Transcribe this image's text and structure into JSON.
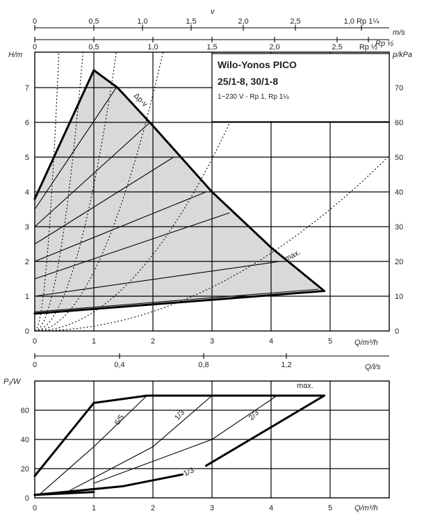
{
  "title": {
    "line1": "Wilo-Yonos PICO",
    "line2": "25/1-8, 30/1-8",
    "line3": "1~230 V - Rp 1, Rp 1¼"
  },
  "chart_data": [
    {
      "type": "line",
      "name": "pump-curve-chart",
      "x_axis": {
        "label": "Q/m³/h",
        "range": [
          0,
          6
        ],
        "ticks": [
          "0",
          "1",
          "2",
          "3",
          "4",
          "5"
        ]
      },
      "y_axis_left": {
        "label": "H/m",
        "range": [
          0,
          8
        ],
        "ticks": [
          "0",
          "1",
          "2",
          "3",
          "4",
          "5",
          "6",
          "7"
        ]
      },
      "y_axis_right": {
        "label": "p/kPa",
        "range": [
          0,
          80
        ],
        "ticks": [
          "0",
          "10",
          "20",
          "30",
          "40",
          "50",
          "60",
          "70"
        ]
      },
      "top_scale_1": {
        "label": "v",
        "unit": "m/s",
        "ticks": [
          "0",
          "0,5",
          "1,0",
          "1,5",
          "2,0",
          "2,5",
          "1,0 Rp 1¼"
        ]
      },
      "top_scale_2": {
        "unit": "Rp ½",
        "ticks": [
          "0",
          "0,5",
          "1,0",
          "1,5",
          "2,0",
          "2,5",
          "Rp ½"
        ]
      },
      "annotations": [
        "Δp-v",
        "max."
      ],
      "max_curve": {
        "x": [
          0,
          1.0,
          1.4,
          2.0,
          3.0,
          4.0,
          4.9
        ],
        "y": [
          3.8,
          7.5,
          7.0,
          5.9,
          4.0,
          2.4,
          1.15
        ]
      },
      "min_curve": {
        "x": [
          0,
          4.9
        ],
        "y": [
          0.5,
          1.15
        ]
      },
      "dp_v_lines": [
        {
          "x": [
            0,
            1.38
          ],
          "y": [
            3.5,
            7.0
          ]
        },
        {
          "x": [
            0,
            1.95
          ],
          "y": [
            3.0,
            6.0
          ]
        },
        {
          "x": [
            0,
            2.35
          ],
          "y": [
            2.5,
            5.0
          ]
        },
        {
          "x": [
            0,
            2.9
          ],
          "y": [
            2.0,
            4.0
          ]
        },
        {
          "x": [
            0,
            3.3
          ],
          "y": [
            1.5,
            3.4
          ]
        },
        {
          "x": [
            0,
            4.15
          ],
          "y": [
            1.0,
            2.0
          ]
        },
        {
          "x": [
            0,
            4.8
          ],
          "y": [
            0.55,
            1.2
          ]
        }
      ],
      "system_curves": [
        {
          "k": 48
        },
        {
          "k": 12
        },
        {
          "k": 4.2
        },
        {
          "k": 1.7
        },
        {
          "k": 0.55
        },
        {
          "k": 0.14
        }
      ]
    },
    {
      "type": "line",
      "name": "power-chart",
      "x_axis": {
        "label": "Q/m³/h",
        "range": [
          0,
          6
        ],
        "ticks": [
          "0",
          "1",
          "2",
          "3",
          "4",
          "5"
        ]
      },
      "y_axis_left": {
        "label": "P₁/W",
        "range": [
          0,
          80
        ],
        "ticks": [
          "0",
          "20",
          "40",
          "60"
        ]
      },
      "top_scale": {
        "unit": "Q/l/s",
        "ticks": [
          "0",
          "0,4",
          "0,8",
          "1,2"
        ]
      },
      "annotations": [
        "max.",
        "6/5",
        "1/3",
        "2/3",
        "1/3"
      ],
      "max_power_curve": {
        "x": [
          0,
          1.0,
          1.9,
          4.9
        ],
        "y": [
          15,
          65,
          70,
          70
        ]
      },
      "bottom_curve": {
        "x": [
          2.9,
          4.9
        ],
        "y": [
          22,
          70
        ]
      },
      "min_power_curve": {
        "x": [
          0,
          1.5,
          2.5
        ],
        "y": [
          2,
          8,
          16
        ]
      },
      "base_curve": {
        "x": [
          0,
          1.0
        ],
        "y": [
          2,
          4
        ]
      },
      "iso_lines": [
        {
          "x": [
            0.1,
            1.0,
            1.9
          ],
          "y": [
            3,
            35,
            70
          ]
        },
        {
          "x": [
            0.5,
            2.0,
            3.0
          ],
          "y": [
            3,
            35,
            70
          ]
        },
        {
          "x": [
            1.0,
            3.0,
            4.1
          ],
          "y": [
            10,
            40,
            70
          ]
        }
      ]
    }
  ]
}
